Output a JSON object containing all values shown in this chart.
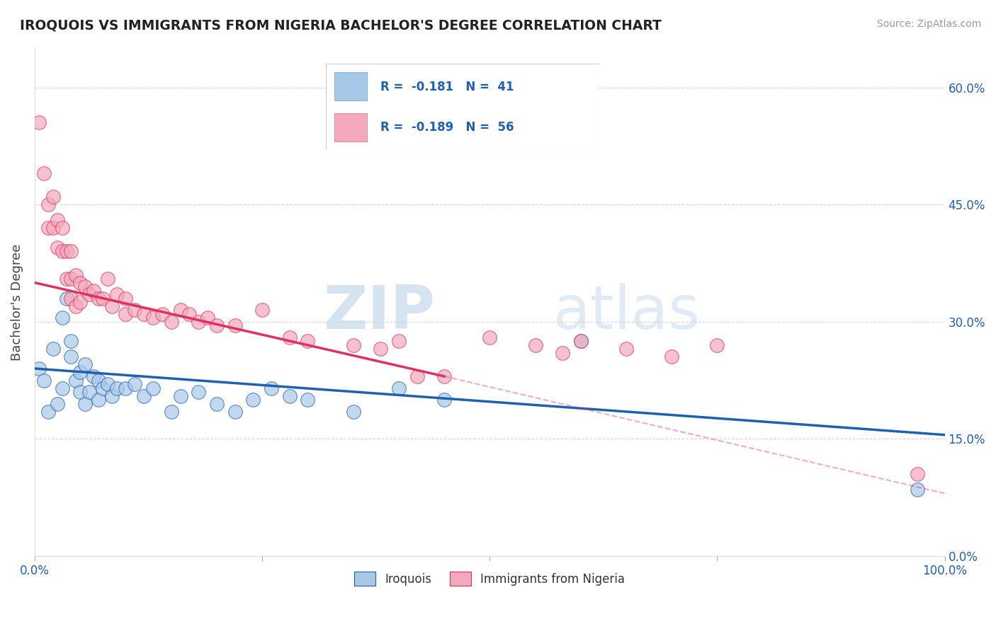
{
  "title": "IROQUOIS VS IMMIGRANTS FROM NIGERIA BACHELOR'S DEGREE CORRELATION CHART",
  "source": "Source: ZipAtlas.com",
  "ylabel": "Bachelor's Degree",
  "legend_label1": "Iroquois",
  "legend_label2": "Immigrants from Nigeria",
  "r1": -0.181,
  "n1": 41,
  "r2": -0.189,
  "n2": 56,
  "color1": "#a8c8e8",
  "color2": "#f4a8bc",
  "line_color1": "#2060b0",
  "line_color2": "#e03060",
  "watermark_zip": "ZIP",
  "watermark_atlas": "atlas",
  "xlim": [
    0.0,
    1.0
  ],
  "ylim": [
    0.0,
    0.65
  ],
  "iroquois_points": [
    [
      0.005,
      0.24
    ],
    [
      0.01,
      0.225
    ],
    [
      0.015,
      0.185
    ],
    [
      0.02,
      0.265
    ],
    [
      0.025,
      0.195
    ],
    [
      0.03,
      0.215
    ],
    [
      0.03,
      0.305
    ],
    [
      0.035,
      0.33
    ],
    [
      0.04,
      0.275
    ],
    [
      0.04,
      0.255
    ],
    [
      0.045,
      0.225
    ],
    [
      0.05,
      0.235
    ],
    [
      0.05,
      0.21
    ],
    [
      0.055,
      0.245
    ],
    [
      0.055,
      0.195
    ],
    [
      0.06,
      0.21
    ],
    [
      0.065,
      0.23
    ],
    [
      0.07,
      0.225
    ],
    [
      0.07,
      0.2
    ],
    [
      0.075,
      0.215
    ],
    [
      0.08,
      0.22
    ],
    [
      0.085,
      0.205
    ],
    [
      0.09,
      0.215
    ],
    [
      0.1,
      0.215
    ],
    [
      0.11,
      0.22
    ],
    [
      0.12,
      0.205
    ],
    [
      0.13,
      0.215
    ],
    [
      0.15,
      0.185
    ],
    [
      0.16,
      0.205
    ],
    [
      0.18,
      0.21
    ],
    [
      0.2,
      0.195
    ],
    [
      0.22,
      0.185
    ],
    [
      0.24,
      0.2
    ],
    [
      0.26,
      0.215
    ],
    [
      0.28,
      0.205
    ],
    [
      0.3,
      0.2
    ],
    [
      0.35,
      0.185
    ],
    [
      0.4,
      0.215
    ],
    [
      0.45,
      0.2
    ],
    [
      0.6,
      0.275
    ],
    [
      0.97,
      0.085
    ]
  ],
  "nigeria_points": [
    [
      0.005,
      0.555
    ],
    [
      0.01,
      0.49
    ],
    [
      0.015,
      0.45
    ],
    [
      0.015,
      0.42
    ],
    [
      0.02,
      0.46
    ],
    [
      0.02,
      0.42
    ],
    [
      0.025,
      0.395
    ],
    [
      0.025,
      0.43
    ],
    [
      0.03,
      0.39
    ],
    [
      0.03,
      0.42
    ],
    [
      0.035,
      0.355
    ],
    [
      0.035,
      0.39
    ],
    [
      0.04,
      0.355
    ],
    [
      0.04,
      0.39
    ],
    [
      0.045,
      0.36
    ],
    [
      0.04,
      0.33
    ],
    [
      0.045,
      0.32
    ],
    [
      0.05,
      0.35
    ],
    [
      0.05,
      0.325
    ],
    [
      0.055,
      0.345
    ],
    [
      0.06,
      0.335
    ],
    [
      0.065,
      0.34
    ],
    [
      0.07,
      0.33
    ],
    [
      0.075,
      0.33
    ],
    [
      0.08,
      0.355
    ],
    [
      0.085,
      0.32
    ],
    [
      0.09,
      0.335
    ],
    [
      0.1,
      0.33
    ],
    [
      0.1,
      0.31
    ],
    [
      0.11,
      0.315
    ],
    [
      0.12,
      0.31
    ],
    [
      0.13,
      0.305
    ],
    [
      0.14,
      0.31
    ],
    [
      0.15,
      0.3
    ],
    [
      0.16,
      0.315
    ],
    [
      0.17,
      0.31
    ],
    [
      0.18,
      0.3
    ],
    [
      0.19,
      0.305
    ],
    [
      0.2,
      0.295
    ],
    [
      0.22,
      0.295
    ],
    [
      0.25,
      0.315
    ],
    [
      0.28,
      0.28
    ],
    [
      0.3,
      0.275
    ],
    [
      0.35,
      0.27
    ],
    [
      0.38,
      0.265
    ],
    [
      0.4,
      0.275
    ],
    [
      0.42,
      0.23
    ],
    [
      0.45,
      0.23
    ],
    [
      0.5,
      0.28
    ],
    [
      0.55,
      0.27
    ],
    [
      0.58,
      0.26
    ],
    [
      0.6,
      0.275
    ],
    [
      0.65,
      0.265
    ],
    [
      0.7,
      0.255
    ],
    [
      0.75,
      0.27
    ],
    [
      0.97,
      0.105
    ]
  ],
  "iroquois_line": [
    [
      0.0,
      0.24
    ],
    [
      1.0,
      0.155
    ]
  ],
  "nigeria_line_solid": [
    [
      0.0,
      0.35
    ],
    [
      0.45,
      0.23
    ]
  ],
  "nigeria_line_dash": [
    [
      0.45,
      0.23
    ],
    [
      1.0,
      0.08
    ]
  ],
  "yticks": [
    0.0,
    0.15,
    0.3,
    0.45,
    0.6
  ],
  "ytick_labels_left": [
    "",
    "",
    "",
    "",
    ""
  ],
  "ytick_labels_right": [
    "0.0%",
    "15.0%",
    "30.0%",
    "45.0%",
    "60.0%"
  ],
  "xticks": [
    0.0,
    0.25,
    0.5,
    0.75,
    1.0
  ],
  "xtick_labels": [
    "0.0%",
    "",
    "",
    "",
    "100.0%"
  ]
}
